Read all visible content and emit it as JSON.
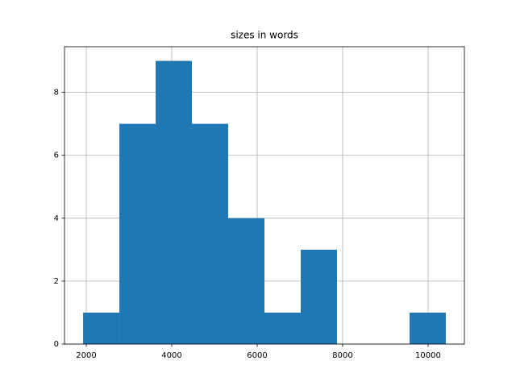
{
  "chart_data": {
    "type": "histogram",
    "title": "sizes in words",
    "bins": [
      1925,
      2774,
      3623,
      4472,
      5321,
      6170,
      7019,
      7868,
      8717,
      9566,
      10415
    ],
    "values": [
      1,
      7,
      9,
      7,
      4,
      1,
      3,
      0,
      0,
      1
    ],
    "color": "#1f77b4",
    "xlim": [
      1490,
      10850
    ],
    "xticks": [
      2000,
      4000,
      6000,
      8000,
      10000
    ],
    "ylim": [
      0,
      9.45
    ],
    "yticks": [
      0,
      2,
      4,
      6,
      8
    ],
    "grid": true
  }
}
